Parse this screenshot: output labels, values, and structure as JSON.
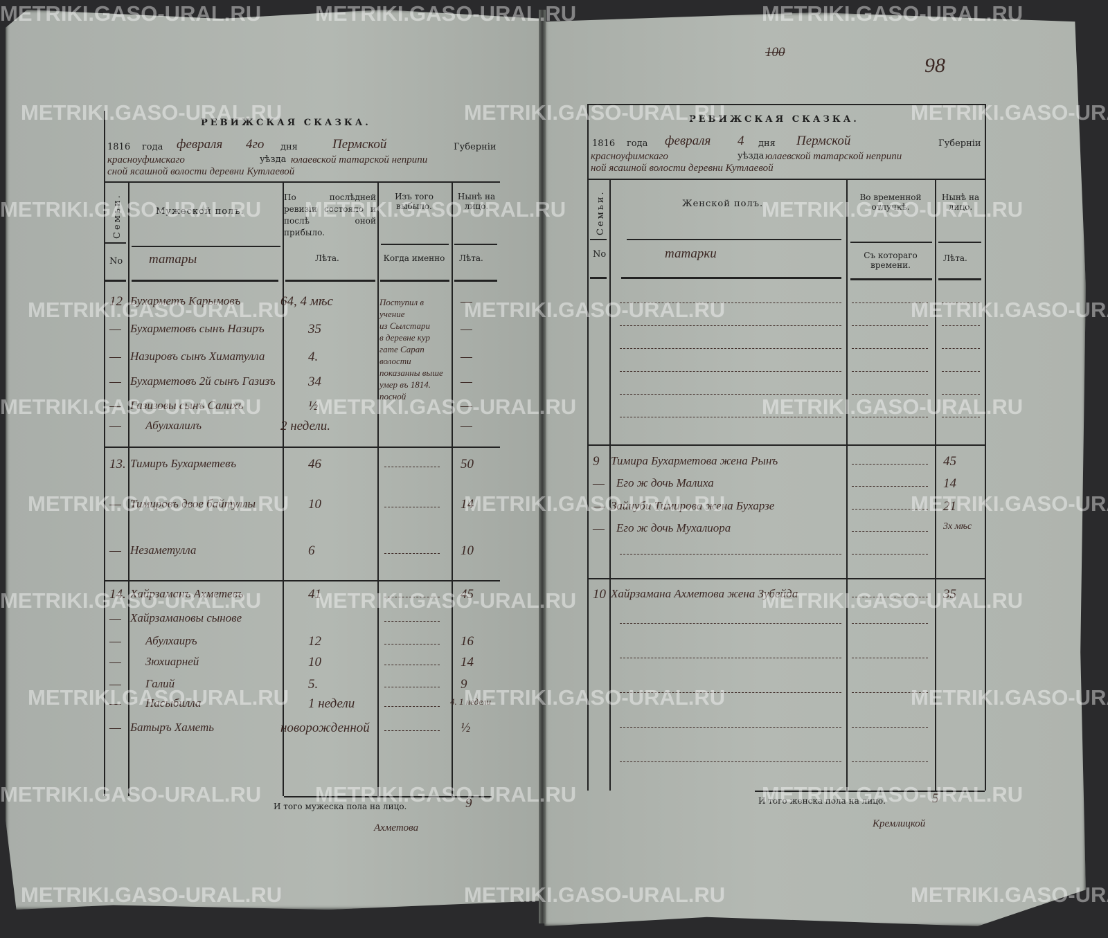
{
  "watermark": "METRIKI.GASO-URAL.RU",
  "left_page": {
    "title": "РЕВИЖСКАЯ СКАЗКА.",
    "date_line": {
      "year": "1816",
      "year_label": "года",
      "month": "февраля",
      "day": "4го",
      "day_label": "дня",
      "province": "Пермской",
      "province_label": "Губернiи"
    },
    "line2": {
      "district": "красноуфимскаго",
      "district_label": "уѣзда",
      "rest": "юлаевской татарской неприпи"
    },
    "line3": "сной ясашной волости деревни Кутлаевой",
    "headers": {
      "family": "Семьи.",
      "no": "No",
      "sex": "Мужеской полъ.",
      "nationality": "татары",
      "last_revision": "По послѣдней ревизiи состояло и послѣ оной прибыло.",
      "years1": "Лѣта.",
      "left": "Изъ того выбыло.",
      "when": "Когда именно",
      "present": "Нынѣ на лицо.",
      "years2": "Лѣта."
    },
    "families": [
      {
        "no": "12",
        "rows": [
          {
            "name": "Бухарметъ Карымовъ",
            "age": "64, 4 мѣс",
            "left": "Поступил в учение",
            "present": "—"
          },
          {
            "name": "Бухарметовъ сынъ Назиръ",
            "age": "35",
            "left": "из Сылстари",
            "present": "—"
          },
          {
            "name": "Назировъ сынъ Химатулла",
            "age": "4.",
            "left": "в деревне кур",
            "present": "—"
          },
          {
            "name": "Бухарметовъ 2й сынъ Газизъ",
            "age": "34",
            "left": "гате Сарап волости",
            "present": "—"
          },
          {
            "name": "Газизовы сынъ Салихъ",
            "age": "½",
            "left": "показанны выше умер въ 1814.",
            "present": "—"
          },
          {
            "name": "Абулхалилъ",
            "age": "2 недели.",
            "left": "посной",
            "present": "—"
          }
        ]
      },
      {
        "no": "13.",
        "rows": [
          {
            "name": "Тимиръ Бухарметевъ",
            "age": "46",
            "left": "",
            "present": "50"
          },
          {
            "name": "Тимировъ двое байтуллы",
            "age": "10",
            "left": "",
            "present": "14"
          },
          {
            "name": "Незаметулла",
            "age": "6",
            "left": "",
            "present": "10"
          }
        ]
      },
      {
        "no": "14.",
        "rows": [
          {
            "name": "Хайрзаманъ Ахметевъ",
            "age": "41",
            "left": "",
            "present": "45"
          },
          {
            "name": "Хайрзамановы сынове",
            "age": "",
            "left": "",
            "present": ""
          },
          {
            "name": "Абулхаиръ",
            "age": "12",
            "left": "",
            "present": "16"
          },
          {
            "name": "Зюхиарней",
            "age": "10",
            "left": "",
            "present": "14"
          },
          {
            "name": "Галий",
            "age": "5.",
            "left": "",
            "present": "9"
          },
          {
            "name": "Насыбилла",
            "age": "1 недели",
            "left": "",
            "present": "4. 1 недели"
          },
          {
            "name": "Батыръ Хаметь",
            "age": "новорожденной",
            "left": "",
            "present": "½"
          }
        ]
      }
    ],
    "total_label": "И того мужеска пола на лицо.",
    "total_value": "9",
    "signature": "Ахметова"
  },
  "right_page": {
    "folio_struck": "100",
    "folio": "98",
    "title": "РЕВИЖСКАЯ СКАЗКА.",
    "date_line": {
      "year": "1816",
      "year_label": "года",
      "month": "февраля",
      "day": "4",
      "day_label": "дня",
      "province": "Пермской",
      "province_label": "Губернiи"
    },
    "line2": {
      "district": "красноуфимскаго",
      "district_label": "уѣзда",
      "rest": "юлаевской татарской неприпи"
    },
    "line3": "ной ясашной волости деревни Кутлаевой",
    "headers": {
      "family": "Семьи.",
      "no": "No",
      "sex": "Женской полъ.",
      "nationality": "татарки",
      "absence": "Во временной отлучкѣ.",
      "since": "Съ котораго времени.",
      "present": "Нынѣ на лицо.",
      "years": "Лѣта."
    },
    "families": [
      {
        "no": "9",
        "rows": [
          {
            "name": "Тимира Бухарметова жена Рынъ",
            "present": "45"
          },
          {
            "name": "Его ж дочь Малиха",
            "present": "14"
          },
          {
            "name": "Зайнуби Тимирова жена Бухарзе",
            "present": "21"
          },
          {
            "name": "Его ж дочь Мухалиора",
            "present": "3х мѣс"
          }
        ]
      },
      {
        "no": "10",
        "rows": [
          {
            "name": "Хайрзамана Ахметова жена Зубейда",
            "present": "35"
          }
        ]
      }
    ],
    "total_label": "И того женска пола на лицо.",
    "total_value": "5",
    "signature": "Кремлицкой"
  }
}
